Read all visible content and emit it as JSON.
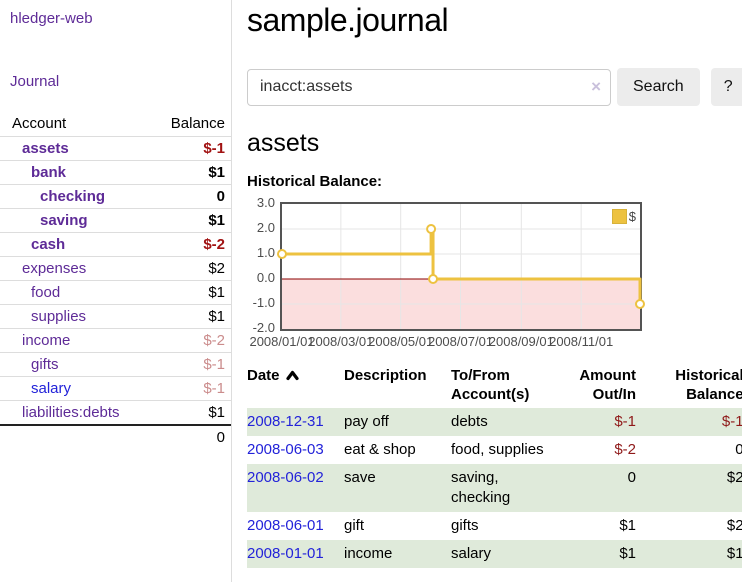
{
  "app": {
    "title": "hledger-web",
    "journal_link": "Journal"
  },
  "sidebar": {
    "accounts_header": {
      "account": "Account",
      "balance": "Balance"
    },
    "accounts": [
      {
        "name": "assets",
        "balance": "$-1",
        "level": 1,
        "bold": true
      },
      {
        "name": "bank",
        "balance": "$1",
        "level": 2,
        "bold": true
      },
      {
        "name": "checking",
        "balance": "0",
        "level": 3,
        "bold": true
      },
      {
        "name": "saving",
        "balance": "$1",
        "level": 3,
        "bold": true
      },
      {
        "name": "cash",
        "balance": "$-2",
        "level": 2,
        "bold": true
      },
      {
        "name": "expenses",
        "balance": "$2",
        "level": 1,
        "bold": false
      },
      {
        "name": "food",
        "balance": "$1",
        "level": 2,
        "bold": false
      },
      {
        "name": "supplies",
        "balance": "$1",
        "level": 2,
        "bold": false
      },
      {
        "name": "income",
        "balance": "$-2",
        "level": 1,
        "bold": false
      },
      {
        "name": "gifts",
        "balance": "$-1",
        "level": 2,
        "bold": false
      },
      {
        "name": "salary",
        "balance": "$-1",
        "level": 2,
        "bold": false,
        "unvisited": true
      },
      {
        "name": "liabilities:debts",
        "balance": "$1",
        "level": 1,
        "bold": false
      }
    ],
    "total": "0"
  },
  "main": {
    "title": "sample.journal",
    "search": {
      "value": "inacct:assets",
      "clear_icon": "×",
      "search_button": "Search",
      "help_button": "?"
    },
    "account_heading": "assets"
  },
  "chart_data": {
    "type": "line",
    "step": true,
    "title": "Historical Balance:",
    "series": [
      {
        "name": "$",
        "color": "#edc240",
        "points": [
          [
            "2008-01-01",
            1
          ],
          [
            "2008-06-01",
            2
          ],
          [
            "2008-06-03",
            0
          ],
          [
            "2008-12-31",
            -1
          ]
        ]
      }
    ],
    "xrange": [
      "2008-01-01",
      "2008-12-31"
    ],
    "ylim": [
      -2,
      3
    ],
    "ytick_labels": [
      "3.0",
      "2.0",
      "1.0",
      "0.0",
      "-1.0",
      "-2.0"
    ],
    "xtick_labels": [
      "2008/01/01",
      "2008/03/01",
      "2008/05/01",
      "2008/07/01",
      "2008/09/01",
      "2008/11/01"
    ],
    "grid": true,
    "legend": {
      "label": "$",
      "position": "top-right"
    },
    "negative_region_fill": "#fbdede",
    "zero_line_color": "#8b0000"
  },
  "register": {
    "headers": [
      "Date",
      "Description",
      "To/From Account(s)",
      "Amount Out/In",
      "Historical Balance"
    ],
    "rows": [
      {
        "date": "2008-12-31",
        "description": "pay off",
        "accounts": "debts",
        "amount": "$-1",
        "balance": "$-1"
      },
      {
        "date": "2008-06-03",
        "description": "eat & shop",
        "accounts": "food, supplies",
        "amount": "$-2",
        "balance": "0"
      },
      {
        "date": "2008-06-02",
        "description": "save",
        "accounts": "saving, checking",
        "amount": "0",
        "balance": "$2"
      },
      {
        "date": "2008-06-01",
        "description": "gift",
        "accounts": "gifts",
        "amount": "$1",
        "balance": "$2"
      },
      {
        "date": "2008-01-01",
        "description": "income",
        "accounts": "salary",
        "amount": "$1",
        "balance": "$1"
      }
    ]
  },
  "colors": {
    "link_purple": "#5e2b97",
    "link_blue": "#2323d9",
    "neg_strong": "#a11212",
    "neg_weak": "#cb8c8c",
    "neg_register": "#8f1919",
    "row_green": "#dfeada",
    "button_bg": "#ececec",
    "chart_line": "#edc240"
  }
}
